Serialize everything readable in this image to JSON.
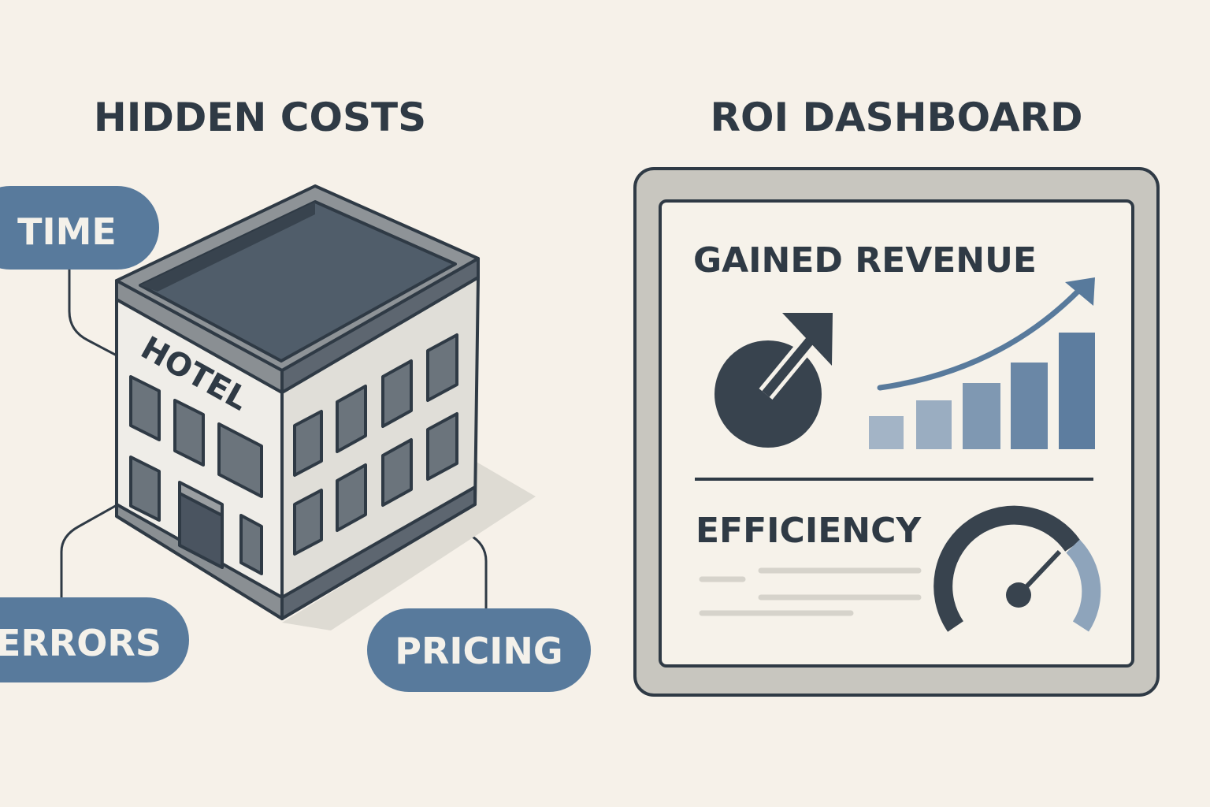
{
  "left_panel": {
    "title": "HIDDEN COSTS",
    "building_sign": "HOTEL",
    "tags": [
      {
        "label": "TIME"
      },
      {
        "label": "ERRORS"
      },
      {
        "label": "PRICING"
      }
    ]
  },
  "right_panel": {
    "title": "ROI DASHBOARD",
    "revenue_heading": "GAINED REVENUE",
    "efficiency_heading": "EFFICIENCY"
  },
  "colors": {
    "background": "#f6f1e9",
    "ink": "#2f3a45",
    "accent_blue": "#587a9c",
    "light_blue": "#a3b4c6",
    "gray": "#c8c6bf"
  },
  "icons": [
    "pie-chart-arrow-icon",
    "bar-chart-trend-icon",
    "gauge-icon",
    "hotel-building-icon"
  ]
}
